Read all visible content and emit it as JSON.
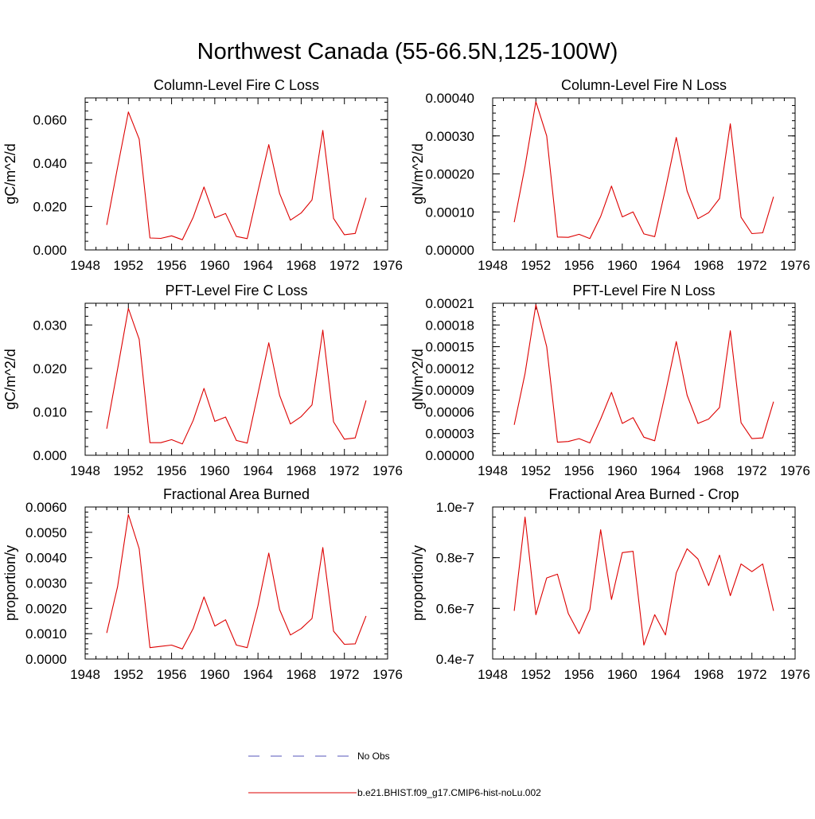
{
  "figure": {
    "title": "Northwest Canada (55-66.5N,125-100W)"
  },
  "legend": {
    "items": [
      {
        "label": "No Obs",
        "color": "#5555bb",
        "style": "dashed"
      },
      {
        "label": "b.e21.BHIST.f09_g17.CMIP6-hist-noLu.002",
        "color": "#dd0000",
        "style": "solid"
      }
    ]
  },
  "chart_data": [
    {
      "type": "line",
      "title": "Column-Level Fire C Loss",
      "ylabel": "gC/m^2/d",
      "xlim": [
        1948,
        1976
      ],
      "ylim": [
        0,
        0.07
      ],
      "xticks": [
        "1948",
        "1952",
        "1956",
        "1960",
        "1964",
        "1968",
        "1972",
        "1976"
      ],
      "yticks": [
        {
          "v": 0.0,
          "label": "0.000"
        },
        {
          "v": 0.02,
          "label": "0.020"
        },
        {
          "v": 0.04,
          "label": "0.040"
        },
        {
          "v": 0.06,
          "label": "0.060"
        }
      ],
      "series": [
        {
          "name": "b.e21.BHIST.f09_g17.CMIP6-hist-noLu.002",
          "color": "#dd0000",
          "x": [
            1950,
            1951,
            1952,
            1953,
            1954,
            1955,
            1956,
            1957,
            1958,
            1959,
            1960,
            1961,
            1962,
            1963,
            1964,
            1965,
            1966,
            1967,
            1968,
            1969,
            1970,
            1971,
            1972,
            1973,
            1974
          ],
          "y": [
            0.0115,
            0.038,
            0.0635,
            0.051,
            0.0055,
            0.0053,
            0.0065,
            0.0047,
            0.015,
            0.029,
            0.0148,
            0.0168,
            0.0062,
            0.0052,
            0.027,
            0.0485,
            0.026,
            0.0137,
            0.017,
            0.023,
            0.055,
            0.0145,
            0.007,
            0.0076,
            0.024
          ]
        }
      ]
    },
    {
      "type": "line",
      "title": "Column-Level Fire N Loss",
      "ylabel": "gN/m^2/d",
      "xlim": [
        1948,
        1976
      ],
      "ylim": [
        0,
        0.0004
      ],
      "xticks": [
        "1948",
        "1952",
        "1956",
        "1960",
        "1964",
        "1968",
        "1972",
        "1976"
      ],
      "yticks": [
        {
          "v": 0.0,
          "label": "0.00000"
        },
        {
          "v": 0.0001,
          "label": "0.00010"
        },
        {
          "v": 0.0002,
          "label": "0.00020"
        },
        {
          "v": 0.0003,
          "label": "0.00030"
        },
        {
          "v": 0.0004,
          "label": "0.00040"
        }
      ],
      "series": [
        {
          "name": "b.e21.BHIST.f09_g17.CMIP6-hist-noLu.002",
          "color": "#dd0000",
          "x": [
            1950,
            1951,
            1952,
            1953,
            1954,
            1955,
            1956,
            1957,
            1958,
            1959,
            1960,
            1961,
            1962,
            1963,
            1964,
            1965,
            1966,
            1967,
            1968,
            1969,
            1970,
            1971,
            1972,
            1973,
            1974
          ],
          "y": [
            7.3e-05,
            0.00022,
            0.00039,
            0.0003,
            3.4e-05,
            3.3e-05,
            4.1e-05,
            3e-05,
            8.8e-05,
            0.000168,
            8.7e-05,
            0.0001,
            4.2e-05,
            3.5e-05,
            0.00016,
            0.000296,
            0.000155,
            8.2e-05,
            9.8e-05,
            0.000135,
            0.000332,
            8.6e-05,
            4.3e-05,
            4.5e-05,
            0.00014
          ]
        }
      ]
    },
    {
      "type": "line",
      "title": "PFT-Level Fire C Loss",
      "ylabel": "gC/m^2/d",
      "xlim": [
        1948,
        1976
      ],
      "ylim": [
        0,
        0.035
      ],
      "xticks": [
        "1948",
        "1952",
        "1956",
        "1960",
        "1964",
        "1968",
        "1972",
        "1976"
      ],
      "yticks": [
        {
          "v": 0.0,
          "label": "0.000"
        },
        {
          "v": 0.01,
          "label": "0.010"
        },
        {
          "v": 0.02,
          "label": "0.020"
        },
        {
          "v": 0.03,
          "label": "0.030"
        }
      ],
      "series": [
        {
          "name": "b.e21.BHIST.f09_g17.CMIP6-hist-noLu.002",
          "color": "#dd0000",
          "x": [
            1950,
            1951,
            1952,
            1953,
            1954,
            1955,
            1956,
            1957,
            1958,
            1959,
            1960,
            1961,
            1962,
            1963,
            1964,
            1965,
            1966,
            1967,
            1968,
            1969,
            1970,
            1971,
            1972,
            1973,
            1974
          ],
          "y": [
            0.0061,
            0.0198,
            0.0338,
            0.0267,
            0.0029,
            0.0029,
            0.0036,
            0.0026,
            0.008,
            0.0154,
            0.0078,
            0.0088,
            0.0034,
            0.0028,
            0.0142,
            0.0259,
            0.0138,
            0.0072,
            0.0089,
            0.0116,
            0.0288,
            0.0077,
            0.0037,
            0.004,
            0.0126
          ]
        }
      ]
    },
    {
      "type": "line",
      "title": "PFT-Level Fire N Loss",
      "ylabel": "gN/m^2/d",
      "xlim": [
        1948,
        1976
      ],
      "ylim": [
        0,
        0.00021
      ],
      "xticks": [
        "1948",
        "1952",
        "1956",
        "1960",
        "1964",
        "1968",
        "1972",
        "1976"
      ],
      "yticks": [
        {
          "v": 0.0,
          "label": "0.00000"
        },
        {
          "v": 3e-05,
          "label": "0.00003"
        },
        {
          "v": 6e-05,
          "label": "0.00006"
        },
        {
          "v": 9e-05,
          "label": "0.00009"
        },
        {
          "v": 0.00012,
          "label": "0.00012"
        },
        {
          "v": 0.00015,
          "label": "0.00015"
        },
        {
          "v": 0.00018,
          "label": "0.00018"
        },
        {
          "v": 0.00021,
          "label": "0.00021"
        }
      ],
      "series": [
        {
          "name": "b.e21.BHIST.f09_g17.CMIP6-hist-noLu.002",
          "color": "#dd0000",
          "x": [
            1950,
            1951,
            1952,
            1953,
            1954,
            1955,
            1956,
            1957,
            1958,
            1959,
            1960,
            1961,
            1962,
            1963,
            1964,
            1965,
            1966,
            1967,
            1968,
            1969,
            1970,
            1971,
            1972,
            1973,
            1974
          ],
          "y": [
            4.2e-05,
            0.000113,
            0.000208,
            0.00015,
            1.8e-05,
            1.9e-05,
            2.3e-05,
            1.7e-05,
            5e-05,
            8.7e-05,
            4.4e-05,
            5.2e-05,
            2.5e-05,
            2e-05,
            8.6e-05,
            0.000157,
            8.3e-05,
            4.4e-05,
            5e-05,
            6.6e-05,
            0.000172,
            4.5e-05,
            2.3e-05,
            2.4e-05,
            7.4e-05
          ]
        }
      ]
    },
    {
      "type": "line",
      "title": "Fractional Area Burned",
      "ylabel": "proportion/y",
      "xlim": [
        1948,
        1976
      ],
      "ylim": [
        0,
        0.006
      ],
      "xticks": [
        "1948",
        "1952",
        "1956",
        "1960",
        "1964",
        "1968",
        "1972",
        "1976"
      ],
      "yticks": [
        {
          "v": 0.0,
          "label": "0.0000"
        },
        {
          "v": 0.001,
          "label": "0.0010"
        },
        {
          "v": 0.002,
          "label": "0.0020"
        },
        {
          "v": 0.003,
          "label": "0.0030"
        },
        {
          "v": 0.004,
          "label": "0.0040"
        },
        {
          "v": 0.005,
          "label": "0.0050"
        },
        {
          "v": 0.006,
          "label": "0.0060"
        }
      ],
      "series": [
        {
          "name": "b.e21.BHIST.f09_g17.CMIP6-hist-noLu.002",
          "color": "#dd0000",
          "x": [
            1950,
            1951,
            1952,
            1953,
            1954,
            1955,
            1956,
            1957,
            1958,
            1959,
            1960,
            1961,
            1962,
            1963,
            1964,
            1965,
            1966,
            1967,
            1968,
            1969,
            1970,
            1971,
            1972,
            1973,
            1974
          ],
          "y": [
            0.00103,
            0.00285,
            0.0057,
            0.00435,
            0.00045,
            0.0005,
            0.00055,
            0.0004,
            0.0012,
            0.00245,
            0.0013,
            0.00155,
            0.00055,
            0.00045,
            0.0021,
            0.00418,
            0.00195,
            0.00095,
            0.0012,
            0.0016,
            0.0044,
            0.0011,
            0.00058,
            0.0006,
            0.0017
          ]
        }
      ]
    },
    {
      "type": "line",
      "title": "Fractional Area Burned - Crop",
      "ylabel": "proportion/y",
      "xlim": [
        1948,
        1976
      ],
      "ylim": [
        4e-08,
        1e-07
      ],
      "xticks": [
        "1948",
        "1952",
        "1956",
        "1960",
        "1964",
        "1968",
        "1972",
        "1976"
      ],
      "yticks": [
        {
          "v": 4e-08,
          "label": "0.4e-7"
        },
        {
          "v": 6e-08,
          "label": "0.6e-7"
        },
        {
          "v": 8e-08,
          "label": "0.8e-7"
        },
        {
          "v": 1e-07,
          "label": "1.0e-7"
        }
      ],
      "series": [
        {
          "name": "b.e21.BHIST.f09_g17.CMIP6-hist-noLu.002",
          "color": "#dd0000",
          "x": [
            1950,
            1951,
            1952,
            1953,
            1954,
            1955,
            1956,
            1957,
            1958,
            1959,
            1960,
            1961,
            1962,
            1963,
            1964,
            1965,
            1966,
            1967,
            1968,
            1969,
            1970,
            1971,
            1972,
            1973,
            1974
          ],
          "y": [
            5.9e-08,
            9.6e-08,
            5.75e-08,
            7.2e-08,
            7.35e-08,
            5.8e-08,
            5e-08,
            5.95e-08,
            9.1e-08,
            6.35e-08,
            8.2e-08,
            8.25e-08,
            4.55e-08,
            5.75e-08,
            4.95e-08,
            7.4e-08,
            8.35e-08,
            7.95e-08,
            6.9e-08,
            8.1e-08,
            6.5e-08,
            7.75e-08,
            7.45e-08,
            7.75e-08,
            5.9e-08
          ]
        }
      ]
    }
  ]
}
